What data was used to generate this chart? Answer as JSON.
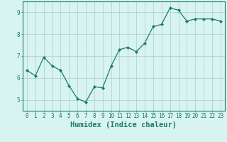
{
  "x": [
    0,
    1,
    2,
    3,
    4,
    5,
    6,
    7,
    8,
    9,
    10,
    11,
    12,
    13,
    14,
    15,
    16,
    17,
    18,
    19,
    20,
    21,
    22,
    23
  ],
  "y": [
    6.35,
    6.1,
    6.95,
    6.55,
    6.35,
    5.65,
    5.05,
    4.9,
    5.6,
    5.55,
    6.55,
    7.3,
    7.4,
    7.2,
    7.6,
    8.35,
    8.45,
    9.2,
    9.1,
    8.6,
    8.7,
    8.7,
    8.7,
    8.6
  ],
  "line_color": "#1a7a6e",
  "marker": "D",
  "marker_size": 2.2,
  "bg_color": "#d8f4f0",
  "grid_color": "#aaccc8",
  "axis_color": "#1a7a6e",
  "xlabel": "Humidex (Indice chaleur)",
  "xlim": [
    -0.5,
    23.5
  ],
  "ylim": [
    4.5,
    9.5
  ],
  "yticks": [
    5,
    6,
    7,
    8,
    9
  ],
  "xticks": [
    0,
    1,
    2,
    3,
    4,
    5,
    6,
    7,
    8,
    9,
    10,
    11,
    12,
    13,
    14,
    15,
    16,
    17,
    18,
    19,
    20,
    21,
    22,
    23
  ],
  "tick_font_size": 5.5,
  "xlabel_font_size": 7.5
}
